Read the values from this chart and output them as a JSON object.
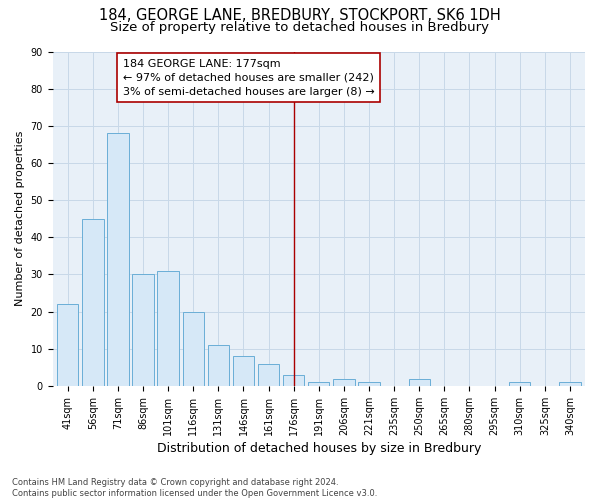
{
  "title1": "184, GEORGE LANE, BREDBURY, STOCKPORT, SK6 1DH",
  "title2": "Size of property relative to detached houses in Bredbury",
  "xlabel": "Distribution of detached houses by size in Bredbury",
  "ylabel": "Number of detached properties",
  "footnote": "Contains HM Land Registry data © Crown copyright and database right 2024.\nContains public sector information licensed under the Open Government Licence v3.0.",
  "categories": [
    "41sqm",
    "56sqm",
    "71sqm",
    "86sqm",
    "101sqm",
    "116sqm",
    "131sqm",
    "146sqm",
    "161sqm",
    "176sqm",
    "191sqm",
    "206sqm",
    "221sqm",
    "235sqm",
    "250sqm",
    "265sqm",
    "280sqm",
    "295sqm",
    "310sqm",
    "325sqm",
    "340sqm"
  ],
  "values": [
    22,
    45,
    68,
    30,
    31,
    20,
    11,
    8,
    6,
    3,
    1,
    2,
    1,
    0,
    2,
    0,
    0,
    0,
    1,
    0,
    1
  ],
  "bar_color": "#d6e8f7",
  "bar_edge_color": "#6aaed6",
  "vline_x_idx": 9,
  "vline_color": "#aa0000",
  "annotation_text": "184 GEORGE LANE: 177sqm\n← 97% of detached houses are smaller (242)\n3% of semi-detached houses are larger (8) →",
  "annotation_box_color": "#ffffff",
  "annotation_box_edge": "#aa0000",
  "ylim": [
    0,
    90
  ],
  "yticks": [
    0,
    10,
    20,
    30,
    40,
    50,
    60,
    70,
    80,
    90
  ],
  "grid_color": "#c8d8e8",
  "background_color": "#e8f0f8",
  "title1_fontsize": 10.5,
  "title2_fontsize": 9.5,
  "xlabel_fontsize": 9,
  "ylabel_fontsize": 8,
  "tick_fontsize": 7,
  "annot_fontsize": 8,
  "footnote_fontsize": 6
}
